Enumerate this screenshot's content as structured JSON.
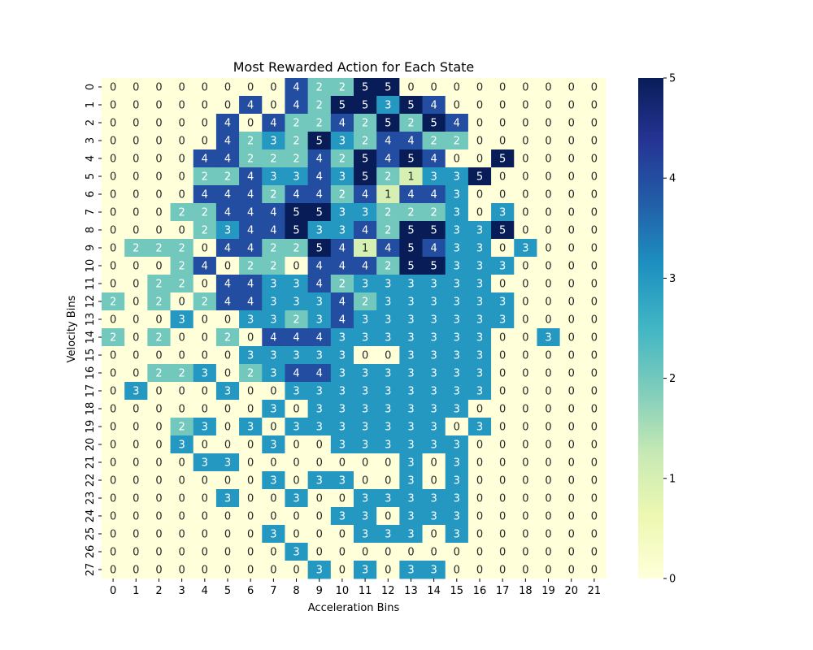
{
  "chart_data": {
    "type": "heatmap",
    "title": "Most Rewarded Action for Each State",
    "xlabel": "Acceleration Bins",
    "ylabel": "Velocity Bins",
    "x_categories": [
      "0",
      "1",
      "2",
      "3",
      "4",
      "5",
      "6",
      "7",
      "8",
      "9",
      "10",
      "11",
      "12",
      "13",
      "14",
      "15",
      "16",
      "17",
      "18",
      "19",
      "20",
      "21"
    ],
    "y_categories": [
      "0",
      "1",
      "2",
      "3",
      "4",
      "5",
      "6",
      "7",
      "8",
      "9",
      "10",
      "11",
      "12",
      "13",
      "14",
      "15",
      "16",
      "17",
      "18",
      "19",
      "20",
      "21",
      "22",
      "23",
      "24",
      "25",
      "26",
      "27"
    ],
    "values": [
      [
        0,
        0,
        0,
        0,
        0,
        0,
        0,
        0,
        4,
        2,
        2,
        5,
        5,
        0,
        0,
        0,
        0,
        0,
        0,
        0,
        0,
        0
      ],
      [
        0,
        0,
        0,
        0,
        0,
        0,
        4,
        0,
        4,
        2,
        5,
        5,
        3,
        5,
        4,
        0,
        0,
        0,
        0,
        0,
        0,
        0
      ],
      [
        0,
        0,
        0,
        0,
        0,
        4,
        0,
        4,
        2,
        2,
        4,
        2,
        5,
        2,
        5,
        4,
        0,
        0,
        0,
        0,
        0,
        0
      ],
      [
        0,
        0,
        0,
        0,
        0,
        4,
        2,
        3,
        2,
        5,
        3,
        2,
        4,
        4,
        2,
        2,
        0,
        0,
        0,
        0,
        0,
        0
      ],
      [
        0,
        0,
        0,
        0,
        4,
        4,
        2,
        2,
        2,
        4,
        2,
        5,
        4,
        5,
        4,
        0,
        0,
        5,
        0,
        0,
        0,
        0
      ],
      [
        0,
        0,
        0,
        0,
        2,
        2,
        4,
        3,
        3,
        4,
        3,
        5,
        2,
        1,
        3,
        3,
        5,
        0,
        0,
        0,
        0,
        0
      ],
      [
        0,
        0,
        0,
        0,
        4,
        4,
        4,
        2,
        4,
        4,
        2,
        4,
        1,
        4,
        4,
        3,
        0,
        0,
        0,
        0,
        0,
        0
      ],
      [
        0,
        0,
        0,
        2,
        2,
        4,
        4,
        4,
        5,
        5,
        3,
        3,
        2,
        2,
        2,
        3,
        0,
        3,
        0,
        0,
        0,
        0
      ],
      [
        0,
        0,
        0,
        0,
        2,
        3,
        4,
        4,
        5,
        3,
        3,
        4,
        2,
        5,
        5,
        3,
        3,
        5,
        0,
        0,
        0,
        0
      ],
      [
        0,
        2,
        2,
        2,
        0,
        4,
        4,
        2,
        2,
        5,
        4,
        1,
        4,
        5,
        4,
        3,
        3,
        0,
        3,
        0,
        0,
        0
      ],
      [
        0,
        0,
        0,
        2,
        4,
        0,
        2,
        2,
        0,
        4,
        4,
        4,
        2,
        5,
        5,
        3,
        3,
        3,
        0,
        0,
        0,
        0
      ],
      [
        0,
        0,
        2,
        2,
        0,
        4,
        4,
        3,
        3,
        4,
        2,
        3,
        3,
        3,
        3,
        3,
        3,
        0,
        0,
        0,
        0,
        0
      ],
      [
        2,
        0,
        2,
        0,
        2,
        4,
        4,
        3,
        3,
        3,
        4,
        2,
        3,
        3,
        3,
        3,
        3,
        3,
        0,
        0,
        0,
        0
      ],
      [
        0,
        0,
        0,
        3,
        0,
        0,
        3,
        3,
        2,
        3,
        4,
        3,
        3,
        3,
        3,
        3,
        3,
        3,
        0,
        0,
        0,
        0
      ],
      [
        2,
        0,
        2,
        0,
        0,
        2,
        0,
        4,
        4,
        4,
        3,
        3,
        3,
        3,
        3,
        3,
        3,
        0,
        0,
        3,
        0,
        0
      ],
      [
        0,
        0,
        0,
        0,
        0,
        0,
        3,
        3,
        3,
        3,
        3,
        0,
        0,
        3,
        3,
        3,
        3,
        0,
        0,
        0,
        0,
        0
      ],
      [
        0,
        0,
        2,
        2,
        3,
        0,
        2,
        3,
        4,
        4,
        3,
        3,
        3,
        3,
        3,
        3,
        3,
        0,
        0,
        0,
        0,
        0
      ],
      [
        0,
        3,
        0,
        0,
        0,
        3,
        0,
        0,
        3,
        3,
        3,
        3,
        3,
        3,
        3,
        3,
        3,
        0,
        0,
        0,
        0,
        0
      ],
      [
        0,
        0,
        0,
        0,
        0,
        0,
        0,
        3,
        0,
        3,
        3,
        3,
        3,
        3,
        3,
        3,
        0,
        0,
        0,
        0,
        0,
        0
      ],
      [
        0,
        0,
        0,
        2,
        3,
        0,
        3,
        0,
        3,
        3,
        3,
        3,
        3,
        3,
        3,
        0,
        3,
        0,
        0,
        0,
        0,
        0
      ],
      [
        0,
        0,
        0,
        3,
        0,
        0,
        0,
        3,
        0,
        0,
        3,
        3,
        3,
        3,
        3,
        3,
        0,
        0,
        0,
        0,
        0,
        0
      ],
      [
        0,
        0,
        0,
        0,
        3,
        3,
        0,
        0,
        0,
        0,
        0,
        0,
        0,
        3,
        0,
        3,
        0,
        0,
        0,
        0,
        0,
        0
      ],
      [
        0,
        0,
        0,
        0,
        0,
        0,
        0,
        3,
        0,
        3,
        3,
        0,
        0,
        3,
        0,
        3,
        0,
        0,
        0,
        0,
        0,
        0
      ],
      [
        0,
        0,
        0,
        0,
        0,
        3,
        0,
        0,
        3,
        0,
        0,
        3,
        3,
        3,
        3,
        3,
        0,
        0,
        0,
        0,
        0,
        0
      ],
      [
        0,
        0,
        0,
        0,
        0,
        0,
        0,
        0,
        0,
        0,
        3,
        3,
        0,
        3,
        3,
        3,
        0,
        0,
        0,
        0,
        0,
        0
      ],
      [
        0,
        0,
        0,
        0,
        0,
        0,
        0,
        3,
        0,
        0,
        0,
        3,
        3,
        3,
        0,
        3,
        0,
        0,
        0,
        0,
        0,
        0
      ],
      [
        0,
        0,
        0,
        0,
        0,
        0,
        0,
        0,
        3,
        0,
        0,
        0,
        0,
        0,
        0,
        0,
        0,
        0,
        0,
        0,
        0,
        0
      ],
      [
        0,
        0,
        0,
        0,
        0,
        0,
        0,
        0,
        0,
        3,
        0,
        3,
        0,
        3,
        3,
        0,
        0,
        0,
        0,
        0,
        0,
        0
      ]
    ],
    "colormap": "YlGnBu",
    "color_stops": [
      "#ffffd9",
      "#edf8b1",
      "#c7e9b4",
      "#7fcdbb",
      "#41b6c4",
      "#1d91c0",
      "#225ea8",
      "#253494",
      "#081d58"
    ],
    "vmin": 0,
    "vmax": 5,
    "colorbar_ticks": [
      "0",
      "1",
      "2",
      "3",
      "4",
      "5"
    ],
    "annotations": true,
    "grid": false
  }
}
